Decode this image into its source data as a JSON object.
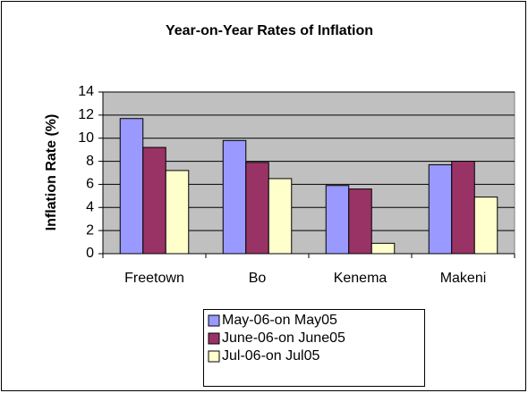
{
  "chart_data": {
    "type": "bar",
    "title": "Year-on-Year Rates of Inflation",
    "y_label": "Inflation Rate (%)",
    "categories": [
      "Freetown",
      "Bo",
      "Kenema",
      "Makeni"
    ],
    "series": [
      {
        "name": "May-06-on May05",
        "color": "#9999ff",
        "values": [
          11.7,
          9.8,
          5.9,
          7.7
        ]
      },
      {
        "name": "June-06-on June05",
        "color": "#993366",
        "values": [
          9.2,
          7.9,
          5.6,
          8.0
        ]
      },
      {
        "name": "Jul-06-on Jul05",
        "color": "#ffffcc",
        "values": [
          7.2,
          6.5,
          0.9,
          4.9
        ]
      }
    ],
    "ylim": [
      0,
      14
    ],
    "yticks": [
      0,
      2,
      4,
      6,
      8,
      10,
      12,
      14
    ],
    "grid": true,
    "legend": "bottom"
  }
}
